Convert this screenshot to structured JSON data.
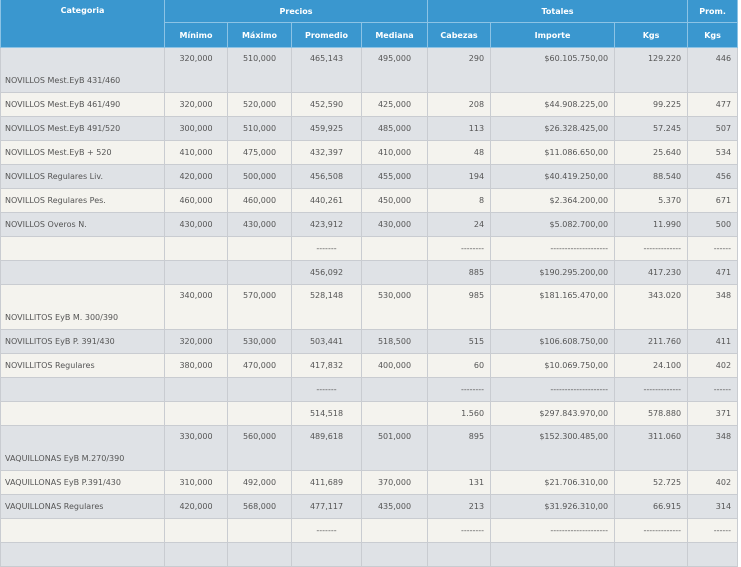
{
  "header": {
    "group_categoria": "Categoria",
    "group_precios": "Precios",
    "group_totales": "Totales",
    "group_prom": "Prom.",
    "col_minimo": "Mínimo",
    "col_maximo": "Máximo",
    "col_promedio": "Promedio",
    "col_mediana": "Mediana",
    "col_cabezas": "Cabezas",
    "col_importe": "Importe",
    "col_kgs": "Kgs",
    "col_prom_kgs": "Kgs"
  },
  "colors": {
    "header_bg": "#3a97cf",
    "row_gray": "#dfe2e6",
    "row_cream": "#f4f3ee"
  },
  "rows": [
    {
      "type": "data",
      "tall": true,
      "categoria": "NOVILLOS Mest.EyB 431/460",
      "minimo": "320,000",
      "maximo": "510,000",
      "promedio": "465,143",
      "mediana": "495,000",
      "cabezas": "290",
      "importe": "$60.105.750,00",
      "kgs": "129.220",
      "prom_kgs": "446"
    },
    {
      "type": "data",
      "categoria": "NOVILLOS Mest.EyB 461/490",
      "minimo": "320,000",
      "maximo": "520,000",
      "promedio": "452,590",
      "mediana": "425,000",
      "cabezas": "208",
      "importe": "$44.908.225,00",
      "kgs": "99.225",
      "prom_kgs": "477"
    },
    {
      "type": "data",
      "categoria": "NOVILLOS Mest.EyB 491/520",
      "minimo": "300,000",
      "maximo": "510,000",
      "promedio": "459,925",
      "mediana": "485,000",
      "cabezas": "113",
      "importe": "$26.328.425,00",
      "kgs": "57.245",
      "prom_kgs": "507"
    },
    {
      "type": "data",
      "categoria": "NOVILLOS Mest.EyB + 520",
      "minimo": "410,000",
      "maximo": "475,000",
      "promedio": "432,397",
      "mediana": "410,000",
      "cabezas": "48",
      "importe": "$11.086.650,00",
      "kgs": "25.640",
      "prom_kgs": "534"
    },
    {
      "type": "data",
      "categoria": "NOVILLOS Regulares Liv.",
      "minimo": "420,000",
      "maximo": "500,000",
      "promedio": "456,508",
      "mediana": "455,000",
      "cabezas": "194",
      "importe": "$40.419.250,00",
      "kgs": "88.540",
      "prom_kgs": "456"
    },
    {
      "type": "data",
      "categoria": "NOVILLOS Regulares Pes.",
      "minimo": "460,000",
      "maximo": "460,000",
      "promedio": "440,261",
      "mediana": "450,000",
      "cabezas": "8",
      "importe": "$2.364.200,00",
      "kgs": "5.370",
      "prom_kgs": "671"
    },
    {
      "type": "data",
      "categoria": "NOVILLOS Overos N.",
      "minimo": "430,000",
      "maximo": "430,000",
      "promedio": "423,912",
      "mediana": "430,000",
      "cabezas": "24",
      "importe": "$5.082.700,00",
      "kgs": "11.990",
      "prom_kgs": "500"
    },
    {
      "type": "separator",
      "categoria": "",
      "minimo": "",
      "maximo": "",
      "promedio": "-------",
      "mediana": "",
      "cabezas": "--------",
      "importe": "--------------------",
      "kgs": "-------------",
      "prom_kgs": "------"
    },
    {
      "type": "subtotal",
      "categoria": "",
      "minimo": "",
      "maximo": "",
      "promedio": "456,092",
      "mediana": "",
      "cabezas": "885",
      "importe": "$190.295.200,00",
      "kgs": "417.230",
      "prom_kgs": "471"
    },
    {
      "type": "data",
      "tall": true,
      "categoria": "NOVILLITOS EyB M. 300/390",
      "minimo": "340,000",
      "maximo": "570,000",
      "promedio": "528,148",
      "mediana": "530,000",
      "cabezas": "985",
      "importe": "$181.165.470,00",
      "kgs": "343.020",
      "prom_kgs": "348"
    },
    {
      "type": "data",
      "categoria": "NOVILLITOS EyB P. 391/430",
      "minimo": "320,000",
      "maximo": "530,000",
      "promedio": "503,441",
      "mediana": "518,500",
      "cabezas": "515",
      "importe": "$106.608.750,00",
      "kgs": "211.760",
      "prom_kgs": "411"
    },
    {
      "type": "data",
      "categoria": "NOVILLITOS Regulares",
      "minimo": "380,000",
      "maximo": "470,000",
      "promedio": "417,832",
      "mediana": "400,000",
      "cabezas": "60",
      "importe": "$10.069.750,00",
      "kgs": "24.100",
      "prom_kgs": "402"
    },
    {
      "type": "separator",
      "categoria": "",
      "minimo": "",
      "maximo": "",
      "promedio": "-------",
      "mediana": "",
      "cabezas": "--------",
      "importe": "--------------------",
      "kgs": "-------------",
      "prom_kgs": "------"
    },
    {
      "type": "subtotal",
      "categoria": "",
      "minimo": "",
      "maximo": "",
      "promedio": "514,518",
      "mediana": "",
      "cabezas": "1.560",
      "importe": "$297.843.970,00",
      "kgs": "578.880",
      "prom_kgs": "371"
    },
    {
      "type": "data",
      "tall": true,
      "categoria": "VAQUILLONAS EyB M.270/390",
      "minimo": "330,000",
      "maximo": "560,000",
      "promedio": "489,618",
      "mediana": "501,000",
      "cabezas": "895",
      "importe": "$152.300.485,00",
      "kgs": "311.060",
      "prom_kgs": "348"
    },
    {
      "type": "data",
      "categoria": "VAQUILLONAS EyB P.391/430",
      "minimo": "310,000",
      "maximo": "492,000",
      "promedio": "411,689",
      "mediana": "370,000",
      "cabezas": "131",
      "importe": "$21.706.310,00",
      "kgs": "52.725",
      "prom_kgs": "402"
    },
    {
      "type": "data",
      "categoria": "VAQUILLONAS Regulares",
      "minimo": "420,000",
      "maximo": "568,000",
      "promedio": "477,117",
      "mediana": "435,000",
      "cabezas": "213",
      "importe": "$31.926.310,00",
      "kgs": "66.915",
      "prom_kgs": "314"
    },
    {
      "type": "separator",
      "categoria": "",
      "minimo": "",
      "maximo": "",
      "promedio": "-------",
      "mediana": "",
      "cabezas": "--------",
      "importe": "--------------------",
      "kgs": "-------------",
      "prom_kgs": "------"
    },
    {
      "type": "subtotal",
      "categoria": "",
      "minimo": "",
      "maximo": "",
      "promedio": "",
      "mediana": "",
      "cabezas": "",
      "importe": "",
      "kgs": "",
      "prom_kgs": ""
    }
  ]
}
